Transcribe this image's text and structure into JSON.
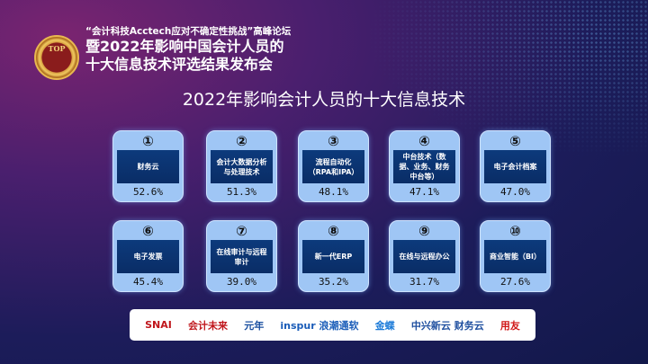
{
  "header": {
    "badge_text": "TOP",
    "line1": "“会计科技Acctech应对不确定性挑战”高峰论坛",
    "line2": "暨2022年影响中国会计人员的",
    "line3": "十大信息技术评选结果发布会"
  },
  "title": "2022年影响会计人员的十大信息技术",
  "items": [
    {
      "rank": "①",
      "name": "财务云",
      "pct": "52.6%"
    },
    {
      "rank": "②",
      "name": "会计大数据分析与处理技术",
      "pct": "51.3%"
    },
    {
      "rank": "③",
      "name": "流程自动化（RPA和IPA）",
      "pct": "48.1%"
    },
    {
      "rank": "④",
      "name": "中台技术（数据、业务、财务中台等）",
      "pct": "47.1%"
    },
    {
      "rank": "⑤",
      "name": "电子会计档案",
      "pct": "47.0%"
    },
    {
      "rank": "⑥",
      "name": "电子发票",
      "pct": "45.4%"
    },
    {
      "rank": "⑦",
      "name": "在线审计与远程审计",
      "pct": "39.0%"
    },
    {
      "rank": "⑧",
      "name": "新一代ERP",
      "pct": "35.2%"
    },
    {
      "rank": "⑨",
      "name": "在线与远程办公",
      "pct": "31.7%"
    },
    {
      "rank": "⑩",
      "name": "商业智能（BI）",
      "pct": "27.6%"
    }
  ],
  "sponsors": [
    {
      "name": "SNAI",
      "color": "#c0161c"
    },
    {
      "name": "会计未来",
      "color": "#c0161c"
    },
    {
      "name": "元年",
      "color": "#1a4fa0"
    },
    {
      "name": "inspur 浪潮通软",
      "color": "#1a5cb8"
    },
    {
      "name": "金蝶",
      "color": "#1a7ad8"
    },
    {
      "name": "中兴新云 财务云",
      "color": "#2050a0"
    },
    {
      "name": "用友",
      "color": "#d01818"
    }
  ]
}
